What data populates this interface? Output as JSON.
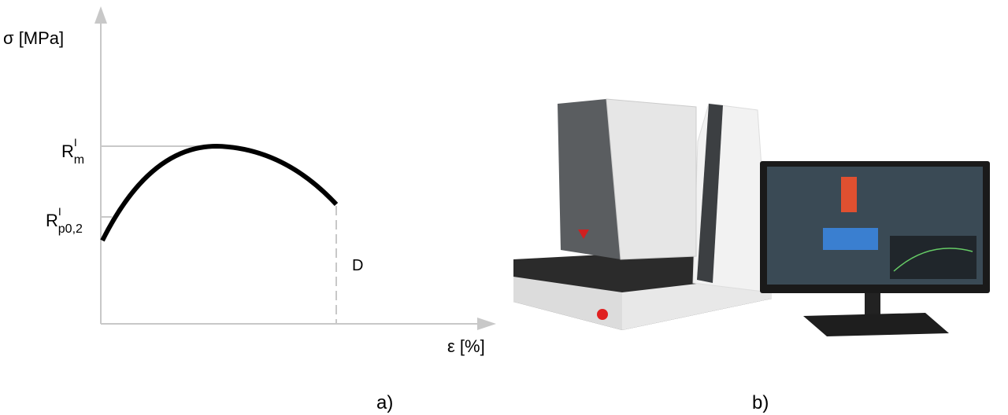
{
  "panel_a": {
    "y_axis_label": "σ [MPa]",
    "x_axis_label": "ε [%]",
    "levels": [
      {
        "symbol": "R",
        "superscript": "I",
        "subscript": "m"
      },
      {
        "symbol": "R",
        "superscript": "I",
        "subscript": "p0,2"
      }
    ],
    "end_label": "D",
    "caption": "a)"
  },
  "panel_b": {
    "caption": "b)"
  }
}
